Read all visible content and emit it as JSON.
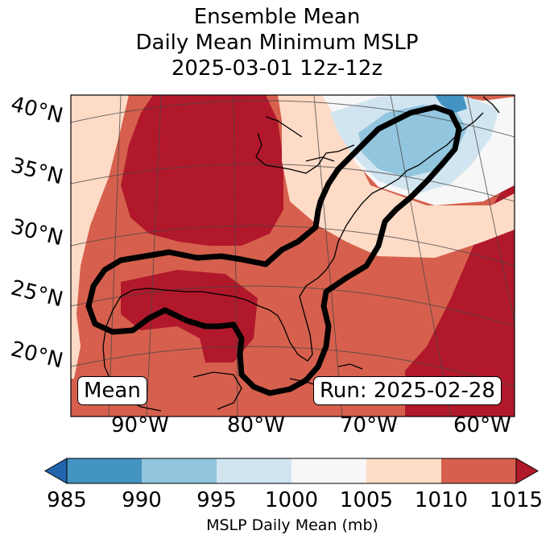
{
  "title": {
    "line1": "Ensemble Mean",
    "line2": "Daily Mean Minimum MSLP",
    "line3": "2025-03-01 12z-12z"
  },
  "map": {
    "latitude_labels": [
      "40°N",
      "35°N",
      "30°N",
      "25°N",
      "20°N"
    ],
    "longitude_labels": [
      "90°W",
      "80°W",
      "70°W",
      "60°W"
    ],
    "left_box": "Mean",
    "right_box": "Run: 2025-02-28"
  },
  "colorbar": {
    "ticks": [
      "985",
      "990",
      "995",
      "1000",
      "1005",
      "1010",
      "1015"
    ],
    "label": "MSLP Daily Mean (mb)",
    "bins": [
      {
        "range": "<985",
        "color": "#2166ac"
      },
      {
        "range": "985-990",
        "color": "#4393c3"
      },
      {
        "range": "990-995",
        "color": "#92c5de"
      },
      {
        "range": "995-1000",
        "color": "#d1e5f0"
      },
      {
        "range": "1000-1005",
        "color": "#f7f7f7"
      },
      {
        "range": "1005-1010",
        "color": "#fddbc7"
      },
      {
        "range": "1010-1015",
        "color": "#d6604d"
      },
      {
        "range": ">1015",
        "color": "#b2182b"
      }
    ]
  }
}
